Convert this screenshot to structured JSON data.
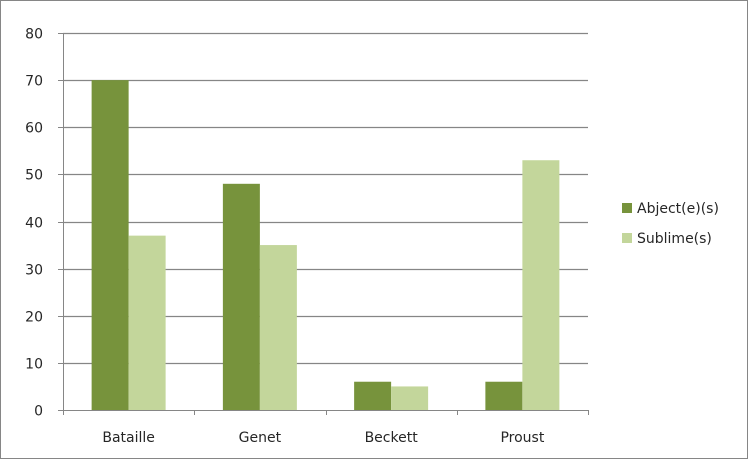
{
  "chart_data": {
    "type": "bar",
    "categories": [
      "Bataille",
      "Genet",
      "Beckett",
      "Proust"
    ],
    "series": [
      {
        "name": "Abject(e)(s)",
        "values": [
          70,
          48,
          6,
          6
        ],
        "color": "#77933c"
      },
      {
        "name": "Sublime(s)",
        "values": [
          37,
          35,
          5,
          53
        ],
        "color": "#c3d69b"
      }
    ],
    "ylim": [
      0,
      80
    ],
    "yticks": [
      0,
      10,
      20,
      30,
      40,
      50,
      60,
      70,
      80
    ],
    "grid": true,
    "gridColor": "#868686",
    "legend": "right",
    "title": "",
    "xlabel": "",
    "ylabel": ""
  }
}
